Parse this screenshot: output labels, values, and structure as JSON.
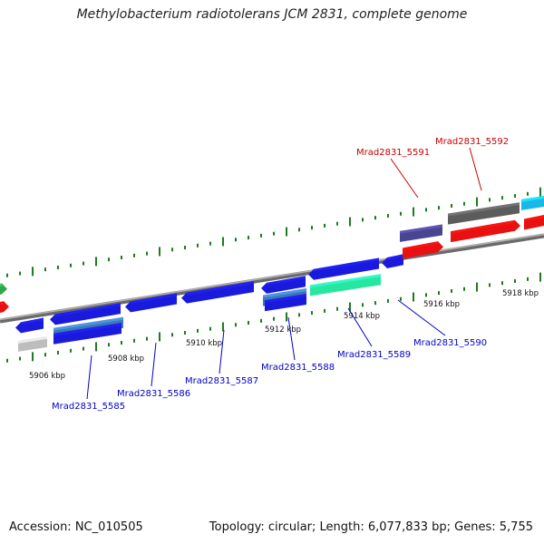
{
  "title": "Methylobacterium radiotolerans JCM 2831, complete genome",
  "footer": {
    "accession": "Accession: NC_010505",
    "summary": "Topology: circular; Length: 6,077,833 bp; Genes: 5,755"
  },
  "colors": {
    "blue": "#1a1adc",
    "red": "#e81010",
    "green": "#2ea84a",
    "teal_green": "#27e6a0",
    "cyan": "#18b8e8",
    "dark_grey": "#5c5c5c",
    "light_grey": "#bdbdbd",
    "slate_purple": "#4a4590",
    "steel_blue": "#3c78b4",
    "tick_green": "#1f7a1f",
    "label_blue": "#0000c8",
    "label_red": "#c80000"
  },
  "scale_labels": [
    "5906 kbp",
    "5908 kbp",
    "5910 kbp",
    "5912 kbp",
    "5914 kbp",
    "5916 kbp",
    "5918 kbp"
  ],
  "gene_labels": [
    {
      "text": "Mrad2831_5585",
      "color": "blue"
    },
    {
      "text": "Mrad2831_5586",
      "color": "blue"
    },
    {
      "text": "Mrad2831_5587",
      "color": "blue"
    },
    {
      "text": "Mrad2831_5588",
      "color": "blue"
    },
    {
      "text": "Mrad2831_5589",
      "color": "blue"
    },
    {
      "text": "Mrad2831_5590",
      "color": "blue"
    },
    {
      "text": "Mrad2831_5591",
      "color": "red"
    },
    {
      "text": "Mrad2831_5592",
      "color": "red"
    }
  ]
}
